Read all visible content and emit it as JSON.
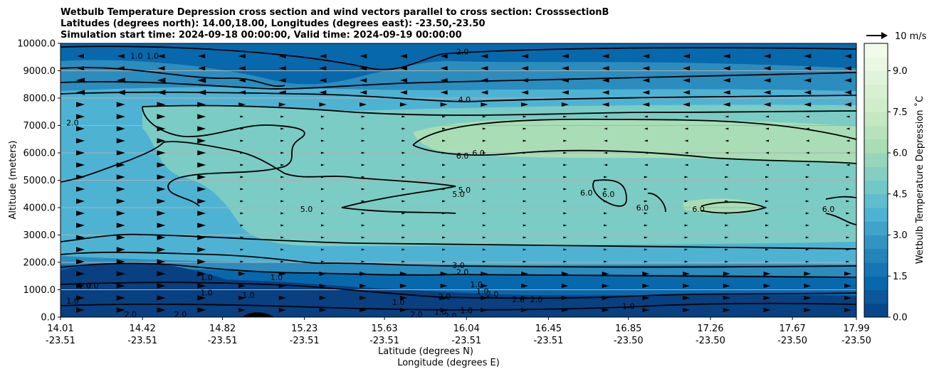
{
  "chart_data": {
    "type": "contour",
    "title_lines": [
      "Wetbulb Temperature Depression cross section and wind vectors parallel to cross section: CrosssectionB",
      "Latitudes (degrees north): 14.00,18.00, Longitudes (degrees east): -23.50,-23.50",
      "Simulation start time: 2024-09-18 00:00:00, Valid time: 2024-09-19 00:00:00"
    ],
    "ylabel": "Altitude (meters)",
    "xlabel_lines": [
      "Latitude (degrees N)",
      "Longitude (degrees E)"
    ],
    "ylim": [
      0,
      10000
    ],
    "y_ticks": [
      "0.0",
      "1000.0",
      "2000.0",
      "3000.0",
      "4000.0",
      "5000.0",
      "6000.0",
      "7000.0",
      "8000.0",
      "9000.0",
      "10000.0"
    ],
    "x_ticks": [
      {
        "lat": "14.01",
        "lon": "-23.51"
      },
      {
        "lat": "14.42",
        "lon": "-23.51"
      },
      {
        "lat": "14.82",
        "lon": "-23.51"
      },
      {
        "lat": "15.23",
        "lon": "-23.51"
      },
      {
        "lat": "15.63",
        "lon": "-23.51"
      },
      {
        "lat": "16.04",
        "lon": "-23.51"
      },
      {
        "lat": "16.45",
        "lon": "-23.51"
      },
      {
        "lat": "16.85",
        "lon": "-23.50"
      },
      {
        "lat": "17.26",
        "lon": "-23.50"
      },
      {
        "lat": "17.67",
        "lon": "-23.50"
      },
      {
        "lat": "17.99",
        "lon": "-23.50"
      }
    ],
    "grid": true,
    "colorbar": {
      "label": "Wetbulb Temperature Depression ˚C",
      "range": [
        0,
        10
      ],
      "ticks": [
        "0.0",
        "1.5",
        "3.0",
        "4.5",
        "6.0",
        "7.5",
        "9.0"
      ],
      "colors": [
        "#084081",
        "#0868ac",
        "#2b8cbe",
        "#4eb3d3",
        "#7bccc4",
        "#a8ddb5",
        "#ccebc5",
        "#e0f3db",
        "#f7fcf0"
      ]
    },
    "wind_key_label": "10 m/s",
    "contour_labels": [
      {
        "text": "2.0",
        "lat": 16.02,
        "alt": 9700
      },
      {
        "text": "1.0",
        "lat": 14.39,
        "alt": 9550
      },
      {
        "text": "1.0",
        "lat": 14.47,
        "alt": 9550
      },
      {
        "text": "4.0",
        "lat": 16.03,
        "alt": 7950
      },
      {
        "text": "2.0",
        "lat": 14.07,
        "alt": 7100
      },
      {
        "text": "6.0",
        "lat": 16.02,
        "alt": 5900
      },
      {
        "text": "6.0",
        "lat": 16.1,
        "alt": 6000
      },
      {
        "text": "5.0",
        "lat": 16.03,
        "alt": 4650
      },
      {
        "text": "5.0",
        "lat": 16.0,
        "alt": 4500
      },
      {
        "text": "5.0",
        "lat": 15.24,
        "alt": 3950
      },
      {
        "text": "6.0",
        "lat": 16.64,
        "alt": 4550
      },
      {
        "text": "6.0",
        "lat": 16.75,
        "alt": 4500
      },
      {
        "text": "6.0",
        "lat": 16.92,
        "alt": 4000
      },
      {
        "text": "6.0",
        "lat": 17.2,
        "alt": 3950
      },
      {
        "text": "6.0",
        "lat": 17.85,
        "alt": 3950
      },
      {
        "text": "3.0",
        "lat": 16.0,
        "alt": 1900
      },
      {
        "text": "2.0",
        "lat": 16.02,
        "alt": 1650
      },
      {
        "text": "1.0",
        "lat": 16.09,
        "alt": 1200
      },
      {
        "text": "1.0",
        "lat": 14.74,
        "alt": 1450
      },
      {
        "text": "1.0",
        "lat": 14.13,
        "alt": 1150
      },
      {
        "text": "1.0",
        "lat": 14.74,
        "alt": 900
      },
      {
        "text": "1.0",
        "lat": 14.07,
        "alt": 600
      },
      {
        "text": "2.0",
        "lat": 14.36,
        "alt": 100
      },
      {
        "text": "2.0",
        "lat": 14.61,
        "alt": 100
      },
      {
        "text": "1.0",
        "lat": 14.95,
        "alt": 800
      },
      {
        "text": "1.0",
        "lat": 15.09,
        "alt": 1450
      },
      {
        "text": "1.0",
        "lat": 15.7,
        "alt": 550
      },
      {
        "text": "2.0",
        "lat": 15.93,
        "alt": 750
      },
      {
        "text": "1.0",
        "lat": 15.91,
        "alt": 200
      },
      {
        "text": "1.0",
        "lat": 16.12,
        "alt": 950
      },
      {
        "text": "2.0",
        "lat": 16.17,
        "alt": 850
      },
      {
        "text": "2.0",
        "lat": 16.3,
        "alt": 650
      },
      {
        "text": "2.0",
        "lat": 16.39,
        "alt": 650
      },
      {
        "text": "1.0",
        "lat": 16.85,
        "alt": 400
      },
      {
        "text": "1.0",
        "lat": 16.04,
        "alt": 250
      },
      {
        "text": "2.0",
        "lat": 15.96,
        "alt": 50
      },
      {
        "text": "2.0",
        "lat": 15.79,
        "alt": 100
      },
      {
        "text": "0.0",
        "lat": 14.17,
        "alt": 1150
      }
    ]
  }
}
